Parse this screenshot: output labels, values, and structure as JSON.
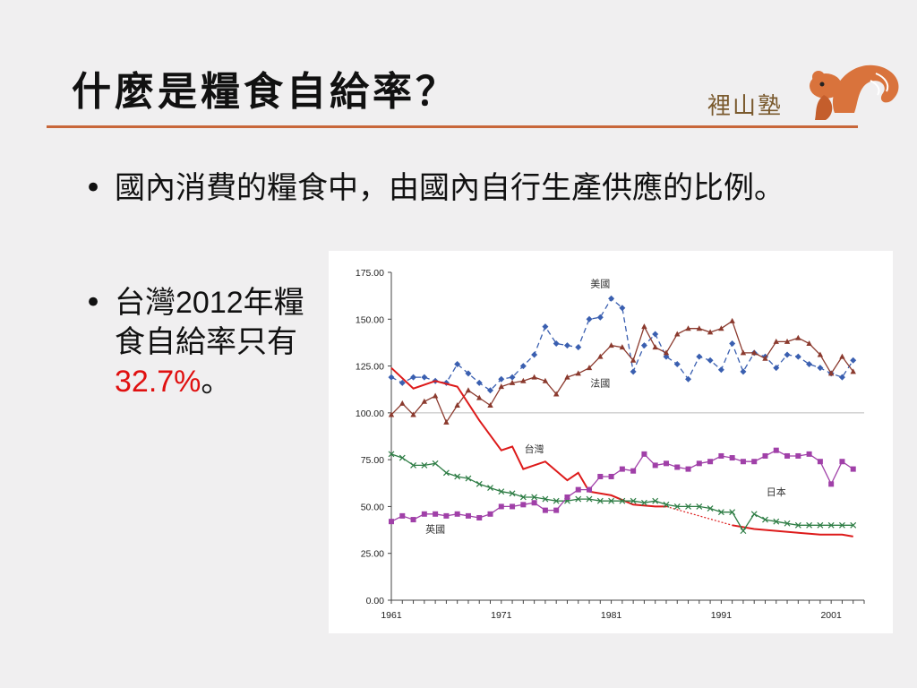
{
  "slide": {
    "title": "什麼是糧食自給率？",
    "logo_text": "裡山塾",
    "bullets": [
      {
        "text": "國內消費的糧食中，由國內自行生產供應的比例。"
      },
      {
        "text_pre": "台灣",
        "year": "2012",
        "text_mid": "年糧食自給率只有",
        "highlight": "32.7%",
        "text_post": "。"
      }
    ],
    "bullet_marker": "•"
  },
  "colors": {
    "accent": "#c8673a",
    "highlight": "#e01010"
  },
  "chart_data": {
    "type": "line",
    "ylim": [
      0,
      175
    ],
    "yticks": [
      "0.00",
      "25.00",
      "50.00",
      "75.00",
      "100.00",
      "125.00",
      "150.00",
      "175.00"
    ],
    "xlim": [
      1961,
      2004
    ],
    "xticks": [
      "1961",
      "1971",
      "1981",
      "1991",
      "2001"
    ],
    "reference_line": 100,
    "series": [
      {
        "name": "美國",
        "color": "#3a5fb0",
        "style": "dashed",
        "marker": "diamond",
        "x": [
          1961,
          1962,
          1963,
          1964,
          1965,
          1966,
          1967,
          1968,
          1969,
          1970,
          1971,
          1972,
          1973,
          1974,
          1975,
          1976,
          1977,
          1978,
          1979,
          1980,
          1981,
          1982,
          1983,
          1984,
          1985,
          1986,
          1987,
          1988,
          1989,
          1990,
          1991,
          1992,
          1993,
          1994,
          1995,
          1996,
          1997,
          1998,
          1999,
          2000,
          2001,
          2002,
          2003
        ],
        "values": [
          119,
          116,
          119,
          119,
          117,
          116,
          126,
          121,
          116,
          112,
          118,
          119,
          125,
          131,
          146,
          137,
          136,
          135,
          150,
          151,
          161,
          156,
          122,
          136,
          142,
          130,
          126,
          118,
          130,
          128,
          123,
          137,
          122,
          132,
          130,
          124,
          131,
          130,
          126,
          124,
          121,
          119,
          128
        ]
      },
      {
        "name": "法國",
        "color": "#8b3a2e",
        "style": "solid",
        "marker": "triangle",
        "x": [
          1961,
          1962,
          1963,
          1964,
          1965,
          1966,
          1967,
          1968,
          1969,
          1970,
          1971,
          1972,
          1973,
          1974,
          1975,
          1976,
          1977,
          1978,
          1979,
          1980,
          1981,
          1982,
          1983,
          1984,
          1985,
          1986,
          1987,
          1988,
          1989,
          1990,
          1991,
          1992,
          1993,
          1994,
          1995,
          1996,
          1997,
          1998,
          1999,
          2000,
          2001,
          2002,
          2003
        ],
        "values": [
          99,
          105,
          99,
          106,
          109,
          95,
          104,
          112,
          108,
          104,
          114,
          116,
          117,
          119,
          117,
          110,
          119,
          121,
          124,
          130,
          136,
          135,
          128,
          146,
          135,
          132,
          142,
          145,
          145,
          143,
          145,
          149,
          132,
          132,
          129,
          138,
          138,
          140,
          137,
          131,
          121,
          130,
          122
        ]
      },
      {
        "name": "台灣",
        "color": "#dd1a1a",
        "style": "solid",
        "marker": "none",
        "x": [
          1961,
          1963,
          1965,
          1967,
          1969,
          1971,
          1972,
          1973,
          1975,
          1977,
          1978,
          1979,
          1981,
          1983,
          1985,
          1986
        ],
        "values": [
          124,
          113,
          117,
          114,
          96,
          80,
          82,
          70,
          74,
          64,
          68,
          58,
          56,
          51,
          50,
          50
        ]
      },
      {
        "name": "台灣",
        "color": "#dd1a1a",
        "style": "solid",
        "marker": "none",
        "x": [
          1992,
          1994,
          1996,
          1998,
          2000,
          2002,
          2003
        ],
        "values": [
          40,
          38,
          37,
          36,
          35,
          35,
          34
        ]
      },
      {
        "name": "日本",
        "color": "#2e7d45",
        "style": "solid",
        "marker": "x",
        "x": [
          1961,
          1962,
          1963,
          1964,
          1965,
          1966,
          1967,
          1968,
          1969,
          1970,
          1971,
          1972,
          1973,
          1974,
          1975,
          1976,
          1977,
          1978,
          1979,
          1980,
          1981,
          1982,
          1983,
          1984,
          1985,
          1986,
          1987,
          1988,
          1989,
          1990,
          1991,
          1992,
          1993,
          1994,
          1995,
          1996,
          1997,
          1998,
          1999,
          2000,
          2001,
          2002,
          2003
        ],
        "values": [
          78,
          76,
          72,
          72,
          73,
          68,
          66,
          65,
          62,
          60,
          58,
          57,
          55,
          55,
          54,
          53,
          53,
          54,
          54,
          53,
          53,
          53,
          53,
          52,
          53,
          51,
          50,
          50,
          50,
          49,
          47,
          47,
          37,
          46,
          43,
          42,
          41,
          40,
          40,
          40,
          40,
          40,
          40
        ]
      },
      {
        "name": "英國",
        "color": "#a040a8",
        "style": "solid",
        "marker": "square",
        "x": [
          1961,
          1962,
          1963,
          1964,
          1965,
          1966,
          1967,
          1968,
          1969,
          1970,
          1971,
          1972,
          1973,
          1974,
          1975,
          1976,
          1977,
          1978,
          1979,
          1980,
          1981,
          1982,
          1983,
          1984,
          1985,
          1986,
          1987,
          1988,
          1989,
          1990,
          1991,
          1992,
          1993,
          1994,
          1995,
          1996,
          1997,
          1998,
          1999,
          2000,
          2001,
          2002,
          2003
        ],
        "values": [
          42,
          45,
          43,
          46,
          46,
          45,
          46,
          45,
          44,
          46,
          50,
          50,
          51,
          52,
          48,
          48,
          55,
          59,
          59,
          66,
          66,
          70,
          69,
          78,
          72,
          73,
          71,
          70,
          73,
          74,
          77,
          76,
          74,
          74,
          77,
          80,
          77,
          77,
          78,
          74,
          62,
          74,
          70
        ]
      }
    ],
    "dotted_connector": {
      "color": "#dd1a1a",
      "x": [
        1986,
        1992
      ],
      "values": [
        50,
        40
      ]
    },
    "annotations": [
      {
        "text": "美國",
        "x": 1980,
        "y": 167
      },
      {
        "text": "法國",
        "x": 1980,
        "y": 114
      },
      {
        "text": "台灣",
        "x": 1974,
        "y": 79
      },
      {
        "text": "日本",
        "x": 1996,
        "y": 56
      },
      {
        "text": "英國",
        "x": 1965,
        "y": 36
      }
    ]
  }
}
